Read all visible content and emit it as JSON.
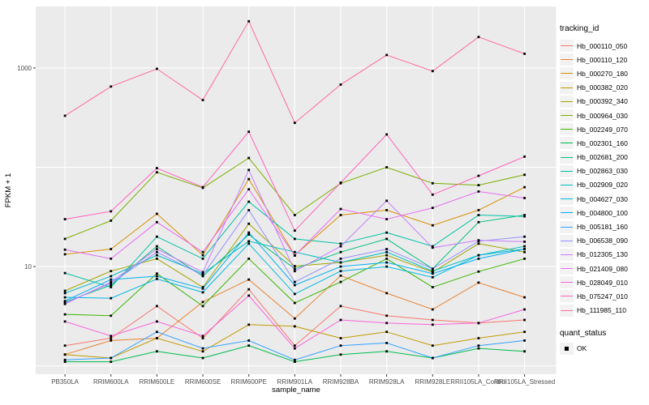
{
  "chart_data": {
    "type": "line",
    "xlabel": "sample_name",
    "ylabel": "FPKM + 1",
    "y_scale": "log10",
    "panel_bg": "#EBEBEB",
    "grid_color": "#FFFFFF",
    "tick_color": "#333333",
    "tick_label_color": "#4D4D4D",
    "point_color": "#000000",
    "legend_title": "tracking_id",
    "quant_legend": {
      "title": "quant_status",
      "items": [
        {
          "label": "OK",
          "marker": "black-square"
        }
      ]
    },
    "y_ticks": [
      {
        "value": 1000,
        "label": "1000"
      },
      {
        "value": 10,
        "label": "10"
      }
    ],
    "y_gridlines": [
      1,
      10,
      100,
      1000
    ],
    "ylim": [
      1,
      4200
    ],
    "categories": [
      "PB350LA",
      "RRIM600LA",
      "RRIM600LE",
      "RRIM600SE",
      "RRIM600PE",
      "RRIM901LA",
      "RRIM928BA",
      "RRIM928LA",
      "RRIM928LE",
      "RRII105LA_Control",
      "RRII105LA_Stressed"
    ],
    "series": [
      {
        "name": "Hb_000110_050",
        "color": "#F8766D",
        "values": [
          1.6,
          1.9,
          4.0,
          1.9,
          5.9,
          1.6,
          4.0,
          3.2,
          2.9,
          2.7,
          2.9
        ]
      },
      {
        "name": "Hb_000110_120",
        "color": "#EA8331",
        "values": [
          1.3,
          1.8,
          1.9,
          4.4,
          7.4,
          3.0,
          8.1,
          5.4,
          3.7,
          6.9,
          4.9
        ]
      },
      {
        "name": "Hb_000270_180",
        "color": "#D89000",
        "values": [
          13.3,
          15,
          34,
          13,
          76,
          13,
          33,
          37,
          26,
          37,
          63
        ]
      },
      {
        "name": "Hb_000382_020",
        "color": "#C09B00",
        "values": [
          1.3,
          1.2,
          1.9,
          1.4,
          2.6,
          2.5,
          1.9,
          2.2,
          1.6,
          1.9,
          2.2
        ]
      },
      {
        "name": "Hb_000392_340",
        "color": "#A3A500",
        "values": [
          5.7,
          9.0,
          12.0,
          6.2,
          27.0,
          10.1,
          11.0,
          13.0,
          8.8,
          17.0,
          14.0
        ]
      },
      {
        "name": "Hb_000964_030",
        "color": "#7CAE00",
        "values": [
          19,
          29,
          89,
          62,
          124,
          33,
          69,
          100,
          69,
          66,
          84
        ]
      },
      {
        "name": "Hb_002249_070",
        "color": "#39B600",
        "values": [
          3.3,
          3.2,
          8.5,
          4.0,
          12.0,
          4.3,
          7.0,
          12.0,
          6.2,
          8.9,
          12.0
        ]
      },
      {
        "name": "Hb_002301_160",
        "color": "#00BB4E",
        "values": [
          1.1,
          1.1,
          1.4,
          1.2,
          1.6,
          1.1,
          1.3,
          1.4,
          1.2,
          1.5,
          1.4
        ]
      },
      {
        "name": "Hb_002681_200",
        "color": "#00BF7D",
        "values": [
          4.4,
          6.5,
          16,
          8.0,
          21,
          9.5,
          14,
          19,
          9.5,
          28,
          33
        ]
      },
      {
        "name": "Hb_002863_030",
        "color": "#00C1A3",
        "values": [
          8.6,
          6.2,
          20,
          12,
          45,
          19,
          17,
          22,
          16,
          33,
          32
        ]
      },
      {
        "name": "Hb_002909_020",
        "color": "#00BFC4",
        "values": [
          5.4,
          8.0,
          13,
          8.5,
          18,
          14,
          11,
          14,
          9.0,
          13,
          16
        ]
      },
      {
        "name": "Hb_004627_030",
        "color": "#00BAE0",
        "values": [
          4.9,
          4.8,
          7.5,
          5.5,
          17,
          5.3,
          9.0,
          10,
          7.8,
          13,
          15
        ]
      },
      {
        "name": "Hb_004800_100",
        "color": "#00B0F6",
        "values": [
          4.5,
          7.4,
          8.0,
          6.0,
          22,
          6.5,
          10,
          11,
          8.5,
          12,
          15
        ]
      },
      {
        "name": "Hb_005181_160",
        "color": "#35A2FF",
        "values": [
          1.15,
          1.2,
          2.2,
          1.5,
          1.8,
          1.15,
          1.6,
          1.7,
          1.2,
          1.6,
          1.8
        ]
      },
      {
        "name": "Hb_006538_090",
        "color": "#9590FF",
        "values": [
          4.3,
          6.8,
          14,
          8.2,
          37,
          7.0,
          12,
          15,
          9.5,
          18,
          20
        ]
      },
      {
        "name": "Hb_012305_130",
        "color": "#C77CFF",
        "values": [
          4.2,
          7.0,
          15,
          8.8,
          94,
          9.0,
          16,
          46,
          15.5,
          18.4,
          17.8
        ]
      },
      {
        "name": "Hb_021409_080",
        "color": "#E76BF3",
        "values": [
          14.8,
          12,
          28,
          14,
          60,
          12.9,
          38,
          30,
          39,
          57,
          49
        ]
      },
      {
        "name": "Hb_028049_010",
        "color": "#FA62DB",
        "values": [
          2.8,
          2.0,
          2.8,
          2.0,
          5.1,
          1.5,
          2.9,
          2.7,
          2.6,
          2.7,
          3.7
        ]
      },
      {
        "name": "Hb_075247_010",
        "color": "#FF62BC",
        "values": [
          30,
          36,
          98,
          63,
          228,
          23,
          70,
          214,
          53,
          82,
          128
        ]
      },
      {
        "name": "Hb_111985_110",
        "color": "#FF6A98",
        "values": [
          330,
          650,
          980,
          475,
          2950,
          280,
          680,
          1350,
          930,
          2050,
          1390
        ]
      }
    ]
  }
}
